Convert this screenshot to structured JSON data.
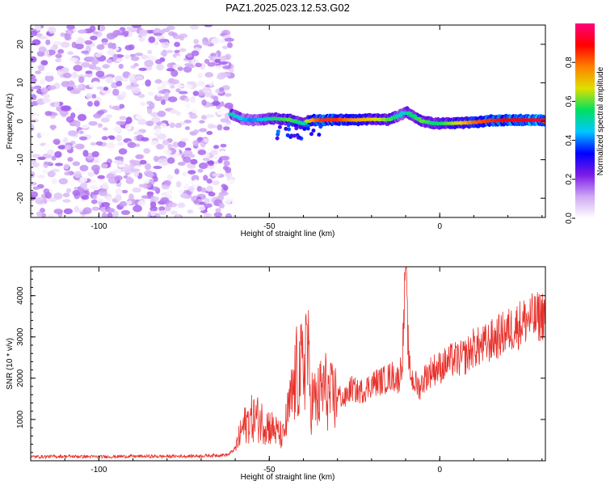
{
  "title": "PAZ1.2025.023.12.53.G02",
  "chart_data": [
    {
      "type": "heatmap",
      "xlabel": "Height of straight line (km)",
      "ylabel": "Frequency (Hz)",
      "xlim": [
        -120,
        31
      ],
      "ylim": [
        -25,
        25
      ],
      "xticks": [
        -100,
        -50,
        0
      ],
      "yticks": [
        -20,
        -10,
        0,
        10,
        20
      ],
      "colorbar": {
        "label": "Normalized spectral amplitude",
        "range": [
          0,
          1
        ],
        "ticks": [
          0.0,
          0.2,
          0.4,
          0.6,
          0.8
        ],
        "colormap": [
          "#ffffff",
          "#cfa8f5",
          "#7d1be6",
          "#0000ff",
          "#00c8ff",
          "#00e060",
          "#e0e000",
          "#ff8000",
          "#ff0000",
          "#ff0080"
        ]
      },
      "noise_region": {
        "x_range": [
          -120,
          -61
        ],
        "peak_amplitude": 0.15
      },
      "signal_trace": {
        "x": [
          -61,
          -58,
          -55,
          -52,
          -48,
          -44,
          -40,
          -38,
          -35,
          -30,
          -25,
          -20,
          -15,
          -11,
          -10,
          -8,
          -5,
          -2,
          0,
          5,
          10,
          15,
          20,
          25,
          31
        ],
        "freq_hz": [
          1.8,
          0.6,
          0.2,
          0.5,
          0.7,
          0.4,
          -0.6,
          0.3,
          0.3,
          0.4,
          0.3,
          0.5,
          0.4,
          1.8,
          2.5,
          1.5,
          0.0,
          -0.5,
          -0.6,
          -0.5,
          -0.3,
          0.2,
          0.3,
          0.3,
          0.3
        ],
        "amplitude": [
          0.5,
          0.45,
          0.4,
          0.45,
          0.55,
          0.6,
          0.5,
          0.7,
          0.85,
          0.85,
          0.75,
          0.7,
          0.6,
          0.45,
          0.5,
          0.55,
          0.6,
          0.55,
          0.55,
          0.65,
          0.8,
          0.85,
          0.9,
          0.9,
          0.95
        ]
      }
    },
    {
      "type": "line",
      "xlabel": "Height of straight line (km)",
      "ylabel": "SNR (10 * v/v)",
      "xlim": [
        -120,
        31
      ],
      "ylim": [
        0,
        4700
      ],
      "xticks": [
        -100,
        -50,
        0
      ],
      "yticks": [
        1000,
        2000,
        3000,
        4000
      ],
      "color": "#e8302a",
      "series": [
        {
          "x": [
            -120,
            -110,
            -100,
            -90,
            -80,
            -70,
            -62,
            -60,
            -58,
            -56,
            -54,
            -52,
            -50,
            -48,
            -46,
            -44,
            -43,
            -42,
            -40,
            -39,
            -38,
            -36,
            -34,
            -32,
            -30,
            -28,
            -26,
            -24,
            -22,
            -20,
            -18,
            -16,
            -14,
            -12,
            -11,
            -10,
            -9,
            -8,
            -6,
            -4,
            -2,
            0,
            2,
            4,
            6,
            8,
            10,
            12,
            14,
            16,
            18,
            20,
            22,
            24,
            26,
            28,
            30,
            31
          ],
          "y": [
            100,
            110,
            100,
            110,
            110,
            120,
            150,
            300,
            800,
            1050,
            1100,
            1000,
            900,
            750,
            600,
            1400,
            1750,
            2200,
            2300,
            3300,
            1600,
            1500,
            1900,
            1600,
            1650,
            1500,
            1800,
            1700,
            1750,
            1900,
            1950,
            2000,
            2100,
            2000,
            2500,
            4650,
            2300,
            2000,
            1800,
            2100,
            2250,
            2300,
            2400,
            2500,
            2500,
            2600,
            2800,
            2800,
            2900,
            3000,
            3100,
            3200,
            3300,
            3400,
            3500,
            3500,
            3600,
            3650
          ]
        }
      ]
    }
  ]
}
